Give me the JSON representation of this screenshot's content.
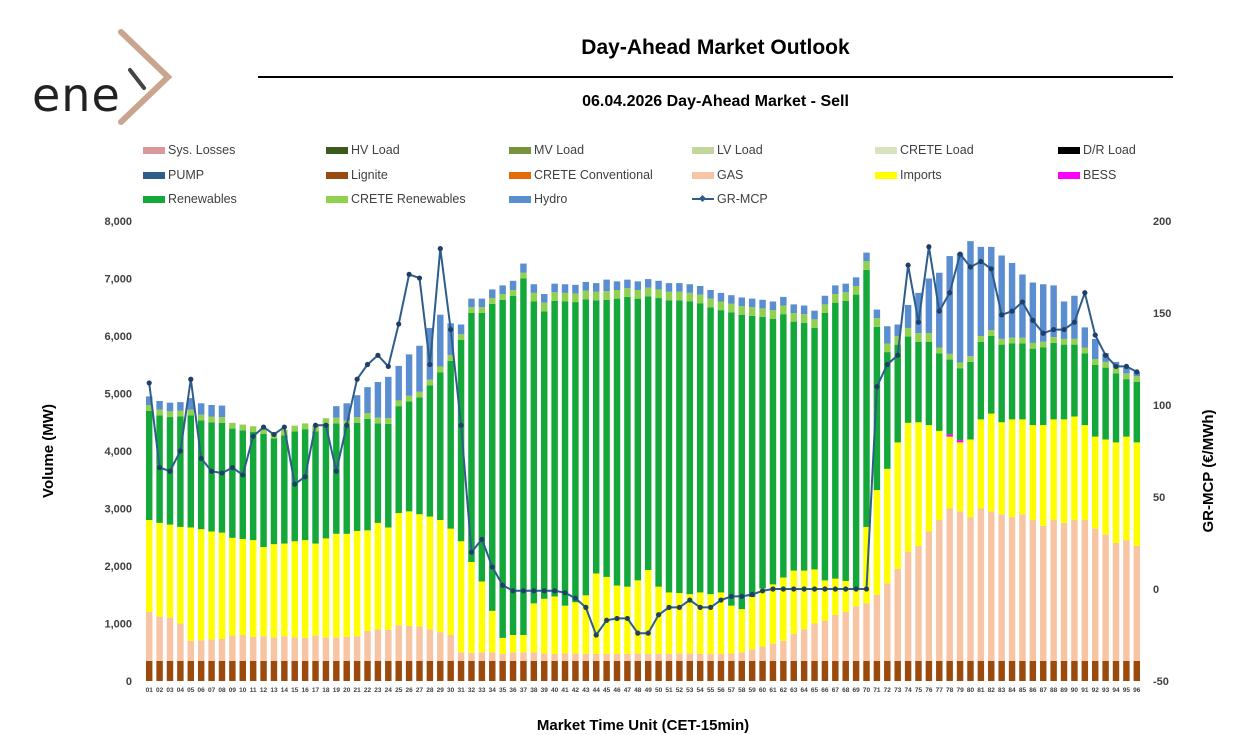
{
  "header": {
    "logo_text": "ene",
    "title": "Day-Ahead Market Outlook",
    "subtitle": "06.04.2026  Day-Ahead Market - Sell"
  },
  "colors": {
    "lignite": "#9a4a0c",
    "gas": "#f8c5a4",
    "imports": "#ffff00",
    "renewables": "#14a83b",
    "crete_renewables": "#92d050",
    "hydro": "#5b8ed0",
    "bess": "#ff00ff",
    "mcp": "#2e5d8c"
  },
  "legend": [
    {
      "label": "Sys. Losses",
      "color": "#d9999b",
      "type": "bar"
    },
    {
      "label": "HV Load",
      "color": "#3d5a1e",
      "type": "bar"
    },
    {
      "label": "MV Load",
      "color": "#77933c",
      "type": "bar"
    },
    {
      "label": "LV Load",
      "color": "#c3d69b",
      "type": "bar"
    },
    {
      "label": "CRETE Load",
      "color": "#d7e4bd",
      "type": "bar"
    },
    {
      "label": "D/R Load",
      "color": "#000000",
      "type": "bar"
    },
    {
      "label": "PUMP",
      "color": "#2e5d8c",
      "type": "bar"
    },
    {
      "label": "Lignite",
      "color": "#9a4a0c",
      "type": "bar"
    },
    {
      "label": "CRETE Conventional",
      "color": "#e36c0a",
      "type": "bar"
    },
    {
      "label": "GAS",
      "color": "#f8c5a4",
      "type": "bar"
    },
    {
      "label": "Imports",
      "color": "#ffff00",
      "type": "bar"
    },
    {
      "label": "BESS",
      "color": "#ff00ff",
      "type": "bar"
    },
    {
      "label": "Renewables",
      "color": "#14a83b",
      "type": "bar"
    },
    {
      "label": "CRETE Renewables",
      "color": "#92d050",
      "type": "bar"
    },
    {
      "label": "Hydro",
      "color": "#5b8ed0",
      "type": "bar"
    },
    {
      "label": "GR-MCP",
      "color": "#2e5d8c",
      "type": "line"
    }
  ],
  "chart_data": {
    "type": "bar",
    "stacked": true,
    "xlabel": "Market Time Unit (CET-15min)",
    "ylabel": "Volume (MW)",
    "y2label": "GR-MCP (€/MWh)",
    "ylim": [
      0,
      8000
    ],
    "y2lim": [
      -50,
      200
    ],
    "yticks": [
      "0",
      "1,000",
      "2,000",
      "3,000",
      "4,000",
      "5,000",
      "6,000",
      "7,000",
      "8,000"
    ],
    "y2ticks": [
      "-50",
      "0",
      "50",
      "100",
      "150",
      "200"
    ],
    "categories": [
      "01",
      "02",
      "03",
      "04",
      "05",
      "06",
      "07",
      "08",
      "09",
      "10",
      "11",
      "12",
      "13",
      "14",
      "15",
      "16",
      "17",
      "18",
      "19",
      "20",
      "21",
      "22",
      "23",
      "24",
      "25",
      "26",
      "27",
      "28",
      "29",
      "30",
      "31",
      "32",
      "33",
      "34",
      "35",
      "36",
      "37",
      "38",
      "39",
      "40",
      "41",
      "42",
      "43",
      "44",
      "45",
      "46",
      "47",
      "48",
      "49",
      "50",
      "51",
      "52",
      "53",
      "54",
      "55",
      "56",
      "57",
      "58",
      "59",
      "60",
      "61",
      "62",
      "63",
      "64",
      "65",
      "66",
      "67",
      "68",
      "69",
      "70",
      "71",
      "72",
      "73",
      "74",
      "75",
      "76",
      "77",
      "78",
      "79",
      "80",
      "81",
      "82",
      "83",
      "84",
      "85",
      "86",
      "87",
      "88",
      "89",
      "90",
      "91",
      "92",
      "93",
      "94",
      "95",
      "96"
    ],
    "series": [
      {
        "name": "Lignite",
        "values": [
          350,
          350,
          350,
          350,
          350,
          350,
          350,
          350,
          350,
          350,
          350,
          350,
          350,
          350,
          350,
          350,
          350,
          350,
          350,
          350,
          350,
          350,
          350,
          350,
          350,
          350,
          350,
          350,
          350,
          350,
          350,
          350,
          350,
          350,
          350,
          350,
          350,
          350,
          350,
          350,
          350,
          350,
          350,
          350,
          350,
          350,
          350,
          350,
          350,
          350,
          350,
          350,
          350,
          350,
          350,
          350,
          350,
          350,
          350,
          350,
          350,
          350,
          350,
          350,
          350,
          350,
          350,
          350,
          350,
          350,
          350,
          350,
          350,
          350,
          350,
          350,
          350,
          350,
          350,
          350,
          350,
          350,
          350,
          350,
          350,
          350,
          350,
          350,
          350,
          350,
          350,
          350,
          350,
          350,
          350,
          350
        ]
      },
      {
        "name": "GAS",
        "values": [
          850,
          770,
          750,
          650,
          350,
          360,
          370,
          380,
          440,
          450,
          420,
          430,
          410,
          430,
          410,
          400,
          440,
          410,
          410,
          420,
          430,
          520,
          550,
          540,
          620,
          610,
          600,
          550,
          500,
          450,
          150,
          140,
          150,
          150,
          120,
          150,
          150,
          150,
          130,
          120,
          130,
          130,
          120,
          120,
          120,
          120,
          120,
          130,
          120,
          120,
          120,
          130,
          130,
          120,
          120,
          120,
          130,
          150,
          200,
          250,
          300,
          350,
          470,
          550,
          650,
          700,
          800,
          850,
          950,
          1000,
          1150,
          1350,
          1600,
          1900,
          2000,
          2250,
          2450,
          2650,
          2600,
          2500,
          2650,
          2600,
          2550,
          2500,
          2550,
          2450,
          2350,
          2450,
          2400,
          2450,
          2450,
          2300,
          2200,
          2050,
          2100,
          2000
        ]
      },
      {
        "name": "Imports",
        "values": [
          1600,
          1630,
          1620,
          1680,
          1970,
          1930,
          1880,
          1850,
          1700,
          1670,
          1680,
          1550,
          1620,
          1610,
          1670,
          1700,
          1600,
          1720,
          1800,
          1790,
          1830,
          1750,
          1850,
          1780,
          1950,
          1990,
          1950,
          1960,
          1950,
          1850,
          1930,
          1580,
          1230,
          720,
          280,
          300,
          300,
          850,
          950,
          1000,
          830,
          890,
          1020,
          1400,
          1340,
          1190,
          1170,
          1270,
          1460,
          1170,
          1070,
          1050,
          1030,
          1070,
          1040,
          1070,
          830,
          750,
          910,
          1010,
          1030,
          1100,
          1100,
          1020,
          940,
          700,
          630,
          540,
          310,
          1330,
          1820,
          1990,
          2200,
          2240,
          2150,
          1850,
          1550,
          1250,
          1200,
          1350,
          1550,
          1700,
          1600,
          1700,
          1650,
          1650,
          1750,
          1750,
          1800,
          1800,
          1650,
          1600,
          1650,
          1750,
          1800,
          1800
        ]
      },
      {
        "name": "BESS",
        "values": [
          0,
          0,
          0,
          0,
          0,
          0,
          0,
          0,
          0,
          0,
          0,
          0,
          0,
          0,
          0,
          0,
          0,
          0,
          0,
          0,
          0,
          0,
          0,
          0,
          0,
          0,
          0,
          0,
          0,
          0,
          0,
          0,
          0,
          0,
          0,
          0,
          0,
          0,
          0,
          0,
          0,
          0,
          0,
          0,
          0,
          0,
          0,
          0,
          0,
          0,
          0,
          0,
          0,
          0,
          0,
          0,
          0,
          0,
          0,
          0,
          0,
          0,
          0,
          0,
          0,
          0,
          0,
          0,
          0,
          0,
          0,
          0,
          0,
          0,
          0,
          0,
          0,
          40,
          40,
          0,
          0,
          0,
          0,
          0,
          0,
          0,
          0,
          0,
          0,
          0,
          0,
          0,
          0,
          0,
          0,
          0
        ]
      },
      {
        "name": "Renewables",
        "values": [
          1900,
          1870,
          1870,
          1920,
          1950,
          1890,
          1900,
          1910,
          1900,
          1890,
          1880,
          1970,
          1840,
          1880,
          1910,
          1930,
          1950,
          1990,
          1920,
          1870,
          1880,
          1940,
          1730,
          1800,
          1860,
          1910,
          2030,
          2280,
          2570,
          2920,
          3500,
          4330,
          4670,
          5340,
          5880,
          5900,
          6200,
          5250,
          5000,
          5140,
          5290,
          5220,
          5150,
          4750,
          4820,
          4990,
          5040,
          4900,
          4760,
          5020,
          5080,
          5090,
          5090,
          5030,
          4990,
          4910,
          5100,
          5120,
          4890,
          4720,
          4620,
          4580,
          4330,
          4310,
          4200,
          4650,
          4800,
          4870,
          5110,
          4470,
          2840,
          2030,
          1700,
          1500,
          1400,
          1450,
          1350,
          1300,
          1250,
          1350,
          1350,
          1350,
          1350,
          1320,
          1320,
          1330,
          1350,
          1330,
          1300,
          1250,
          1250,
          1250,
          1250,
          1200,
          1000,
          1050
        ]
      },
      {
        "name": "CRETE Renewables",
        "values": [
          100,
          100,
          100,
          100,
          100,
          100,
          100,
          100,
          100,
          100,
          100,
          100,
          100,
          100,
          100,
          100,
          100,
          100,
          100,
          100,
          100,
          100,
          100,
          100,
          100,
          100,
          100,
          100,
          100,
          100,
          100,
          100,
          100,
          100,
          100,
          100,
          100,
          150,
          150,
          150,
          150,
          150,
          150,
          150,
          150,
          150,
          150,
          150,
          150,
          150,
          150,
          150,
          150,
          150,
          150,
          150,
          150,
          150,
          150,
          150,
          150,
          150,
          150,
          150,
          150,
          150,
          150,
          150,
          150,
          150,
          150,
          150,
          150,
          150,
          150,
          150,
          100,
          100,
          100,
          100,
          100,
          100,
          100,
          100,
          100,
          100,
          100,
          100,
          100,
          100,
          100,
          100,
          100,
          100,
          100,
          100
        ]
      },
      {
        "name": "Hydro",
        "values": [
          150,
          150,
          150,
          150,
          200,
          200,
          200,
          200,
          0,
          0,
          0,
          0,
          0,
          0,
          0,
          0,
          0,
          0,
          200,
          300,
          380,
          450,
          620,
          720,
          600,
          720,
          800,
          900,
          900,
          550,
          170,
          150,
          150,
          150,
          150,
          160,
          160,
          150,
          150,
          150,
          150,
          150,
          150,
          150,
          200,
          150,
          150,
          150,
          150,
          150,
          150,
          150,
          150,
          150,
          150,
          150,
          150,
          150,
          150,
          150,
          150,
          150,
          150,
          150,
          150,
          150,
          150,
          150,
          150,
          150,
          150,
          300,
          200,
          400,
          700,
          950,
          1300,
          1700,
          1900,
          2000,
          1550,
          1450,
          1450,
          1300,
          1100,
          1050,
          1000,
          900,
          650,
          750,
          350,
          350,
          150,
          100,
          100,
          80
        ]
      },
      {
        "name": "GR-MCP",
        "axis": "right",
        "values": [
          112,
          66,
          64,
          75,
          114,
          71,
          64,
          63,
          66,
          62,
          83,
          88,
          84,
          88,
          57,
          61,
          89,
          89,
          64,
          89,
          114,
          122,
          127,
          121,
          144,
          171,
          169,
          122,
          185,
          141,
          89,
          20,
          27,
          12,
          2,
          -1,
          -1,
          -1,
          -1,
          -1,
          -2,
          -5,
          -10,
          -25,
          -17,
          -16,
          -16,
          -24,
          -24,
          -14,
          -10,
          -10,
          -6,
          -10,
          -10,
          -6,
          -4,
          -4,
          -3,
          -1,
          0,
          0,
          0,
          0,
          0,
          0,
          0,
          0,
          0,
          0,
          110,
          122,
          127,
          176,
          145,
          186,
          151,
          161,
          182,
          175,
          178,
          174,
          149,
          151,
          156,
          146,
          139,
          141,
          141,
          145,
          161,
          138,
          127,
          121,
          121,
          118
        ]
      }
    ]
  }
}
